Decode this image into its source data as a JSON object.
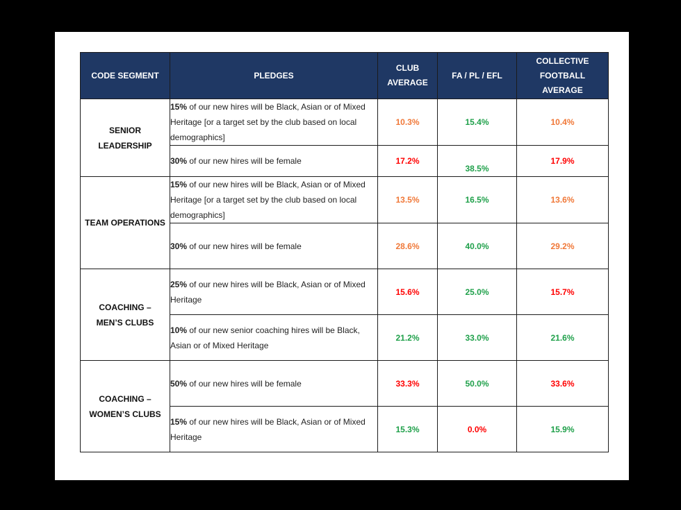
{
  "colors": {
    "header_bg": "#1f3864",
    "red": "#ff0000",
    "orange": "#f07838",
    "green": "#1fa04a"
  },
  "headers": {
    "segment": "CODE SEGMENT",
    "pledges": "PLEDGES",
    "club_avg_1": "CLUB",
    "club_avg_2": "AVERAGE",
    "fa_pl_efl": "FA / PL / EFL",
    "collective_1": "COLLECTIVE",
    "collective_2": "FOOTBALL",
    "collective_3": "AVERAGE"
  },
  "segments": {
    "senior": {
      "line1": "SENIOR",
      "line2": "LEADERSHIP"
    },
    "team_ops": {
      "line1": "TEAM OPERATIONS"
    },
    "coach_men": {
      "line1": "COACHING –",
      "line2": "MEN’S CLUBS"
    },
    "coach_women": {
      "line1": "COACHING –",
      "line2": "WOMEN’S CLUBS"
    }
  },
  "rows": [
    {
      "pct": "15%",
      "text": " of our new hires will be Black, Asian or of Mixed Heritage [or a target set by the club based on local demographics]",
      "club": "10.3%",
      "fa": "15.4%",
      "collective": "10.4%"
    },
    {
      "pct": "30%",
      "text": " of our new hires will be female",
      "club": "17.2%",
      "fa": "38.5%",
      "collective": "17.9%"
    },
    {
      "pct": "15%",
      "text": " of our new hires will be Black, Asian or of Mixed Heritage [or a target set by the club based on local demographics]",
      "club": "13.5%",
      "fa": "16.5%",
      "collective": "13.6%"
    },
    {
      "pct": "30%",
      "text": " of our new hires will be female",
      "club": "28.6%",
      "fa": "40.0%",
      "collective": "29.2%"
    },
    {
      "pct": "25%",
      "text": " of our new hires will be Black, Asian or of Mixed Heritage",
      "club": "15.6%",
      "fa": "25.0%",
      "collective": "15.7%"
    },
    {
      "pct": "10%",
      "text": " of our new senior coaching hires will be Black, Asian or of Mixed Heritage",
      "club": "21.2%",
      "fa": "33.0%",
      "collective": "21.6%"
    },
    {
      "pct": "50%",
      "text": " of our new hires will be female",
      "club": "33.3%",
      "fa": "50.0%",
      "collective": "33.6%"
    },
    {
      "pct": "15%",
      "text": " of our new hires will be Black, Asian or of Mixed Heritage",
      "club": "15.3%",
      "fa": "0.0%",
      "collective": "15.9%"
    }
  ]
}
